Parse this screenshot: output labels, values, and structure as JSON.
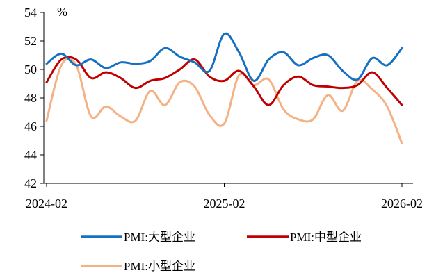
{
  "chart_data": {
    "type": "line",
    "unit": "%",
    "x": [
      "2024-02",
      "2024-03",
      "2024-04",
      "2024-05",
      "2024-06",
      "2024-07",
      "2024-08",
      "2024-09",
      "2024-10",
      "2024-11",
      "2024-12",
      "2025-01",
      "2025-02",
      "2025-03",
      "2025-04",
      "2025-05",
      "2025-06",
      "2025-07",
      "2025-08",
      "2025-09",
      "2025-10",
      "2025-11",
      "2025-12",
      "2026-01",
      "2026-02"
    ],
    "xticks": [
      "2024-02",
      "2025-02",
      "2026-02"
    ],
    "ylim": [
      42,
      54
    ],
    "yticks": [
      42,
      44,
      46,
      48,
      50,
      52,
      54
    ],
    "grid": false,
    "legend_position": "bottom",
    "series": [
      {
        "name": "PMI:大型企业",
        "color": "#1570C2",
        "values": [
          50.4,
          51.1,
          50.3,
          50.7,
          50.1,
          50.5,
          50.4,
          50.6,
          51.5,
          50.9,
          50.5,
          49.9,
          52.5,
          51.2,
          49.2,
          50.7,
          51.2,
          50.3,
          50.8,
          51.0,
          49.9,
          49.3,
          50.8,
          50.3,
          51.5
        ]
      },
      {
        "name": "PMI:中型企业",
        "color": "#C00000",
        "values": [
          49.1,
          50.7,
          50.7,
          49.4,
          49.8,
          49.4,
          48.7,
          49.2,
          49.4,
          50.0,
          50.7,
          49.5,
          49.2,
          49.9,
          48.8,
          47.5,
          48.9,
          49.5,
          48.9,
          48.8,
          48.7,
          48.9,
          49.8,
          48.7,
          47.5
        ]
      },
      {
        "name": "PMI:小型企业",
        "color": "#F4B183",
        "values": [
          46.4,
          50.3,
          50.3,
          46.7,
          47.4,
          46.7,
          46.4,
          48.5,
          47.5,
          49.1,
          48.8,
          46.8,
          46.2,
          49.6,
          48.9,
          49.3,
          47.2,
          46.5,
          46.5,
          48.2,
          47.1,
          49.2,
          48.6,
          47.4,
          44.8
        ]
      }
    ]
  }
}
